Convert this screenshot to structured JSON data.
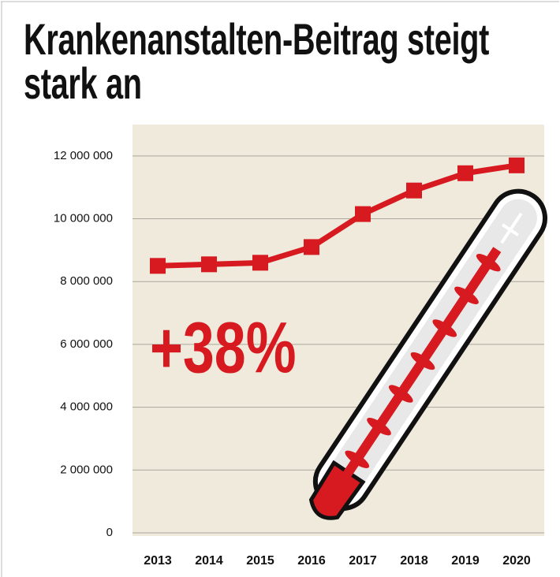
{
  "chart_data": {
    "type": "line",
    "title": "Krankenanstalten-Beitrag steigt stark an",
    "annotation": "+38%",
    "categories": [
      "2013",
      "2014",
      "2015",
      "2016",
      "2017",
      "2018",
      "2019",
      "2020"
    ],
    "series": [
      {
        "color": "#d71920",
        "values": [
          8500000,
          8550000,
          8600000,
          9100000,
          10150000,
          10900000,
          11450000,
          11700000
        ]
      }
    ],
    "ylim": [
      0,
      13000000
    ],
    "yticks": [
      0,
      {
        "value": 2000000,
        "label": "2 000 000"
      },
      {
        "value": 4000000,
        "label": "4 000 000"
      },
      {
        "value": 6000000,
        "label": "6 000 000"
      },
      {
        "value": 8000000,
        "label": "8 000 000"
      },
      {
        "value": 10000000,
        "label": "10 000 000"
      },
      {
        "value": 12000000,
        "label": "12 000 000"
      }
    ],
    "grid": true
  }
}
